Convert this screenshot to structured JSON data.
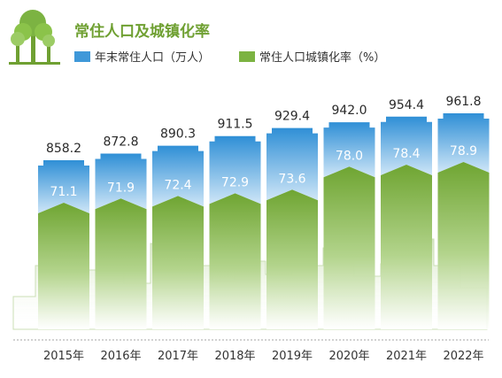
{
  "chart_data": {
    "type": "bar",
    "title": "常住人口及城镇化率",
    "categories": [
      "2015年",
      "2016年",
      "2017年",
      "2018年",
      "2019年",
      "2020年",
      "2021年",
      "2022年"
    ],
    "series": [
      {
        "name": "年末常住人口（万人）",
        "values": [
          858.2,
          872.8,
          890.3,
          911.5,
          929.4,
          942.0,
          954.4,
          961.8
        ]
      },
      {
        "name": "常住人口城镇化率（%）",
        "values": [
          71.1,
          71.9,
          72.4,
          72.9,
          73.6,
          78.0,
          78.4,
          78.9
        ]
      }
    ],
    "legend_position": "top-left",
    "grid": false
  },
  "colors": {
    "title": "#6fa032",
    "population": "#4a9fd8",
    "urbanization": "#7cb342",
    "population_light": "#d7ebf8",
    "urbanization_light": "#e8f2de",
    "label_population": "#2a2a2a",
    "label_urbanization": "#ffffff",
    "axis_dots": "#b8b8b8"
  },
  "icons": {
    "logo": "tree-icon"
  }
}
